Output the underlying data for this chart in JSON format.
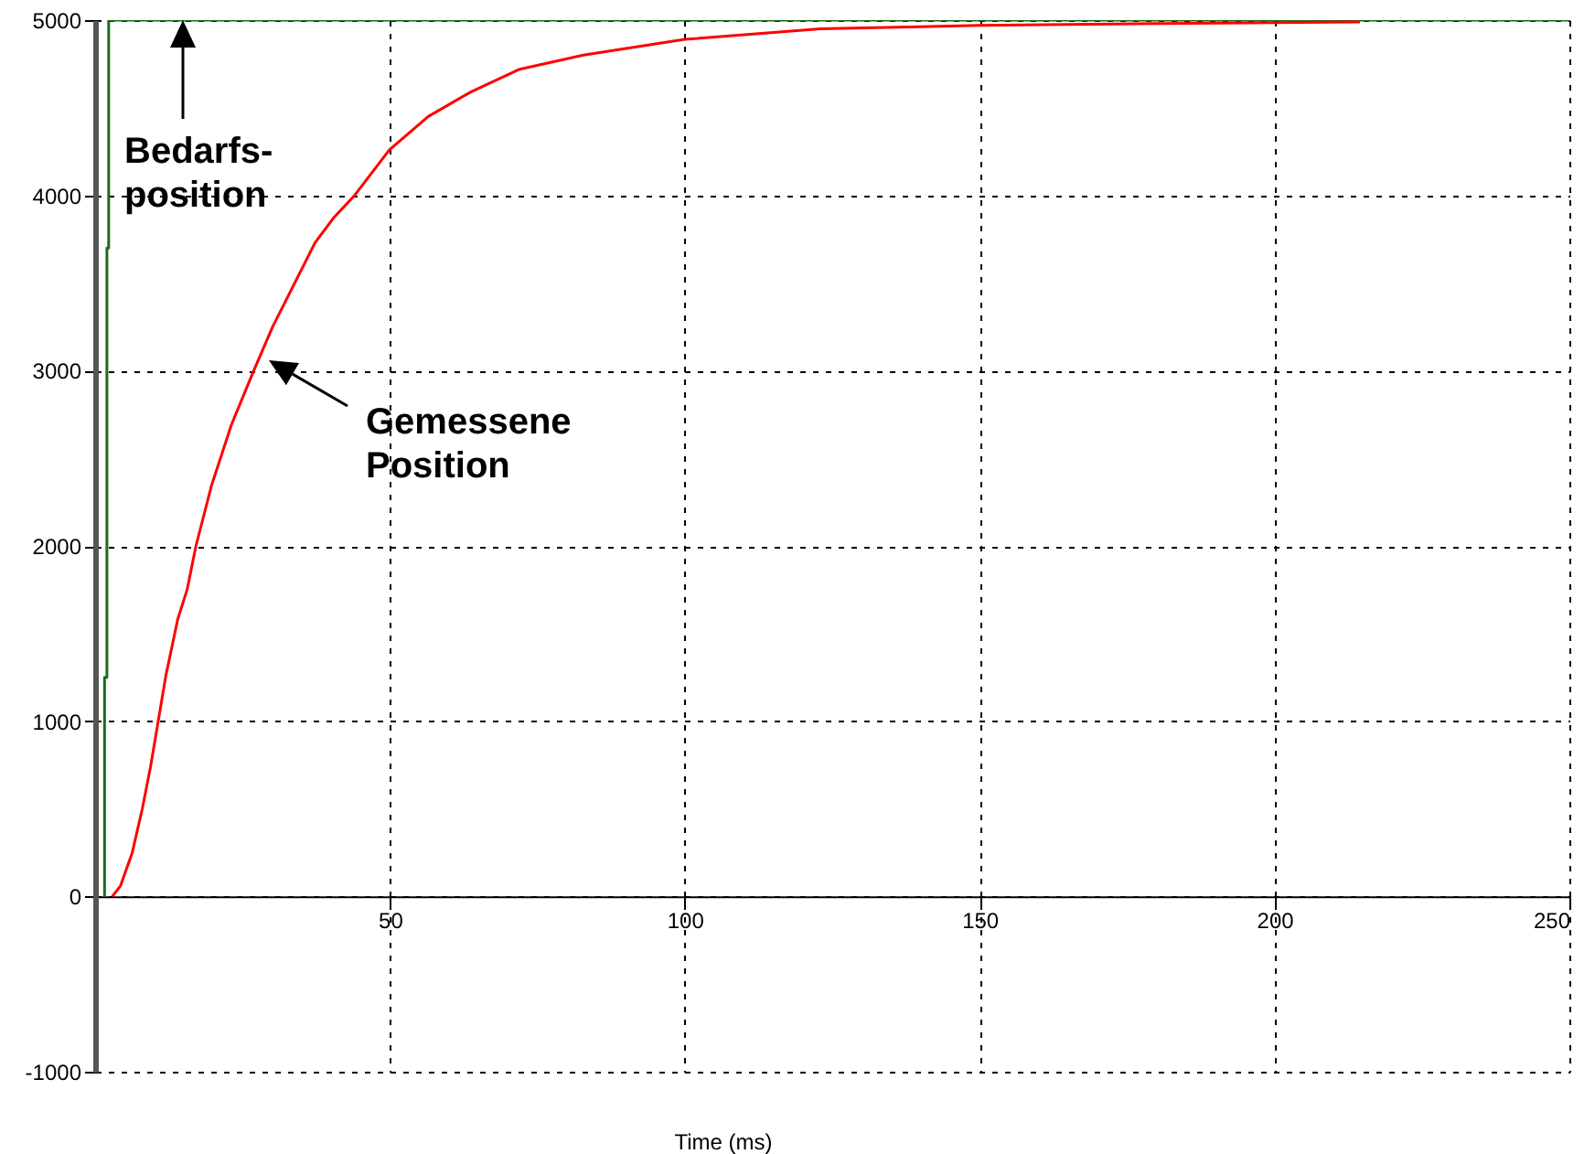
{
  "chart_data": {
    "type": "line",
    "xlabel": "Time (ms)",
    "xlim": [
      0,
      250
    ],
    "xticks": [
      50,
      100,
      150,
      200,
      250
    ],
    "ylim": [
      -1000,
      5000
    ],
    "yticks": [
      -1000,
      0,
      1000,
      2000,
      3000,
      4000,
      5000
    ],
    "grid": true,
    "series": [
      {
        "color": "#1a6b1a",
        "x": [
          1.6,
          1.6,
          2.0,
          2.0,
          2.3,
          2.3,
          250
        ],
        "values": [
          0,
          1250,
          1250,
          3700,
          3700,
          5000,
          5000
        ]
      },
      {
        "color": "#ff0000",
        "x": [
          2.9,
          4.3,
          6.3,
          8.0,
          9.4,
          10.7,
          12.0,
          14.0,
          15.6,
          17.1,
          19.7,
          23.1,
          26.9,
          30.1,
          33.7,
          37.3,
          40.4,
          44.0,
          49.9,
          56.5,
          63.7,
          72.0,
          82.8,
          100,
          123,
          150,
          180,
          214.5
        ],
        "values": [
          0,
          60,
          250,
          500,
          740,
          1000,
          1260,
          1580,
          1750,
          2000,
          2340,
          2690,
          3000,
          3250,
          3490,
          3730,
          3870,
          4000,
          4260,
          4450,
          4590,
          4720,
          4800,
          4890,
          4950,
          4970,
          4980,
          4990
        ]
      }
    ],
    "annotations": [
      "Bedarfs-\nposition",
      "Gemessene\nPosition"
    ]
  }
}
